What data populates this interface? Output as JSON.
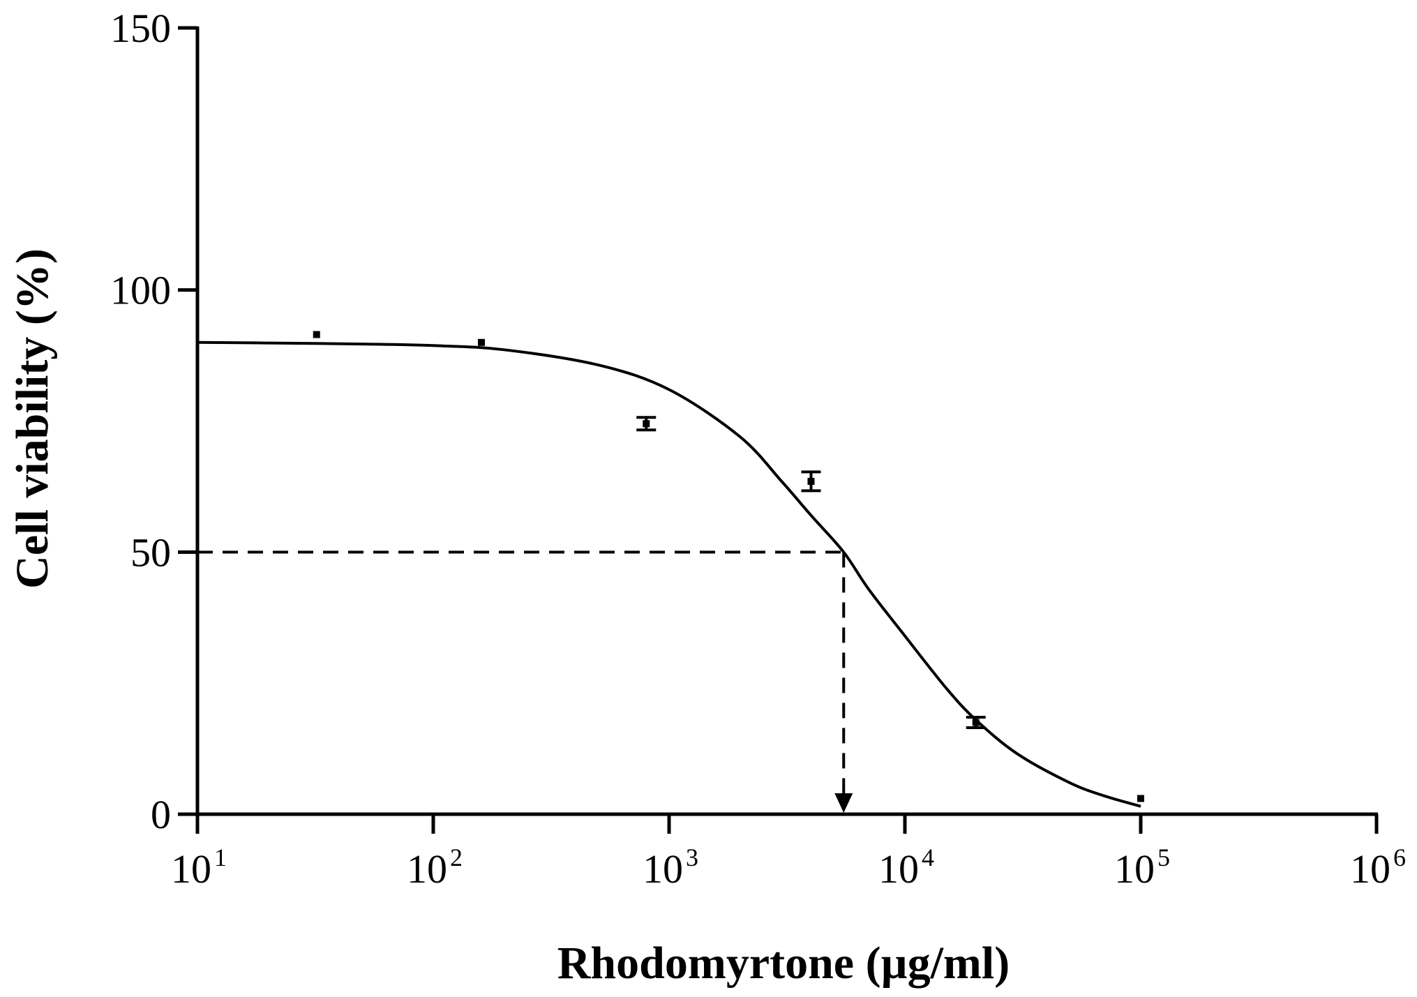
{
  "chart_data": {
    "type": "scatter",
    "title": "",
    "xlabel": "Rhodomyrtone (µg/ml)",
    "ylabel": "Cell viability (%)",
    "x_scale": "log",
    "xlim": [
      10,
      1000000
    ],
    "ylim": [
      0,
      150
    ],
    "x_ticks": [
      {
        "base": "10",
        "exp": "1",
        "value": 10
      },
      {
        "base": "10",
        "exp": "2",
        "value": 100
      },
      {
        "base": "10",
        "exp": "3",
        "value": 1000
      },
      {
        "base": "10",
        "exp": "4",
        "value": 10000
      },
      {
        "base": "10",
        "exp": "5",
        "value": 100000
      },
      {
        "base": "10",
        "exp": "6",
        "value": 1000000
      }
    ],
    "y_ticks": [
      {
        "label": "0",
        "value": 0
      },
      {
        "label": "50",
        "value": 50
      },
      {
        "label": "100",
        "value": 100
      },
      {
        "label": "150",
        "value": 150
      }
    ],
    "grid": false,
    "legend": "none",
    "series": [
      {
        "points": [
          {
            "x": 32,
            "y": 91.5,
            "err": 0.5
          },
          {
            "x": 160,
            "y": 90,
            "err": 0.5
          },
          {
            "x": 800,
            "y": 74.5,
            "err": 1.2
          },
          {
            "x": 4000,
            "y": 63.5,
            "err": 1.8
          },
          {
            "x": 20000,
            "y": 17.5,
            "err": 1.0
          },
          {
            "x": 100000,
            "y": 3,
            "err": 0.5
          }
        ],
        "fit_curve": [
          [
            10,
            90
          ],
          [
            20,
            89.9
          ],
          [
            50,
            89.7
          ],
          [
            100,
            89.4
          ],
          [
            200,
            88.6
          ],
          [
            500,
            85.7
          ],
          [
            1000,
            81
          ],
          [
            2000,
            72
          ],
          [
            3000,
            63.5
          ],
          [
            4000,
            57
          ],
          [
            5500,
            50
          ],
          [
            7000,
            43
          ],
          [
            10000,
            34
          ],
          [
            15000,
            24
          ],
          [
            20000,
            18
          ],
          [
            30000,
            11.5
          ],
          [
            50000,
            6
          ],
          [
            70000,
            3.5
          ],
          [
            100000,
            1.5
          ]
        ]
      }
    ],
    "annotations": {
      "ic50_y": 50,
      "ic50_x": 5500
    },
    "colors": {
      "ink": "#000000",
      "background": "#ffffff"
    }
  }
}
